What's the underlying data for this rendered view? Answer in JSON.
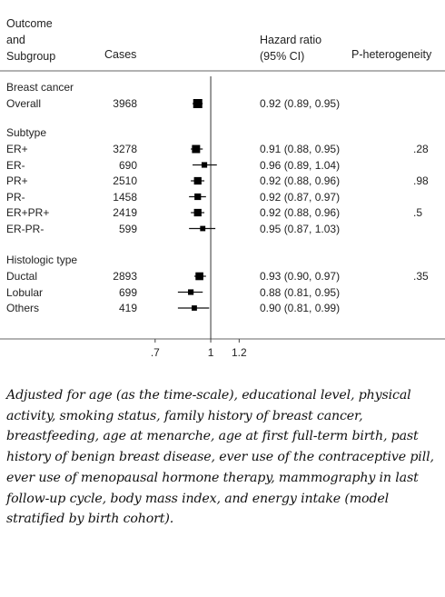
{
  "headers": {
    "outcome": "Outcome\nand\nSubgroup",
    "cases": "Cases",
    "hr": "Hazard ratio\n(95% CI)",
    "phet": "P-heterogeneity"
  },
  "note": "Adjusted for age (as the time-scale), educational level, physical activity, smoking status, family history of breast cancer, breastfeeding, age at menarche, age at first full-term birth, past history of benign breast disease, ever use of the contraceptive pill, ever use of menopausal hormone therapy, mammography in last follow-up cycle, body mass index, and energy intake (model stratified by birth cohort).",
  "chart_data": {
    "type": "forest",
    "xscale": "log",
    "xlim": [
      0.62,
      1.33
    ],
    "reference_line": 1,
    "xticks": [
      {
        "value": 0.7,
        "label": ".7"
      },
      {
        "value": 1,
        "label": "1"
      },
      {
        "value": 1.2,
        "label": "1.2"
      }
    ],
    "groups": [
      {
        "title": "Breast cancer",
        "rows": [
          {
            "label": "Overall",
            "cases": "3968",
            "hr": 0.92,
            "lo": 0.89,
            "hi": 0.95,
            "ci_text": "0.92 (0.89, 0.95)",
            "phet": "",
            "weight": 1.0
          }
        ]
      },
      {
        "title": "Subtype",
        "rows": [
          {
            "label": "ER+",
            "cases": "3278",
            "hr": 0.91,
            "lo": 0.88,
            "hi": 0.95,
            "ci_text": "0.91 (0.88, 0.95)",
            "phet": ".28",
            "weight": 0.85
          },
          {
            "label": "ER-",
            "cases": "690",
            "hr": 0.96,
            "lo": 0.89,
            "hi": 1.04,
            "ci_text": "0.96 (0.89, 1.04)",
            "phet": "",
            "weight": 0.45
          },
          {
            "label": "PR+",
            "cases": "2510",
            "hr": 0.92,
            "lo": 0.88,
            "hi": 0.96,
            "ci_text": "0.92 (0.88, 0.96)",
            "phet": ".98",
            "weight": 0.75
          },
          {
            "label": "PR-",
            "cases": "1458",
            "hr": 0.92,
            "lo": 0.87,
            "hi": 0.97,
            "ci_text": "0.92 (0.87, 0.97)",
            "phet": "",
            "weight": 0.6
          },
          {
            "label": "ER+PR+",
            "cases": "2419",
            "hr": 0.92,
            "lo": 0.88,
            "hi": 0.96,
            "ci_text": "0.92 (0.88, 0.96)",
            "phet": ".5",
            "weight": 0.75
          },
          {
            "label": "ER-PR-",
            "cases": "599",
            "hr": 0.95,
            "lo": 0.87,
            "hi": 1.03,
            "ci_text": "0.95 (0.87, 1.03)",
            "phet": "",
            "weight": 0.4
          }
        ]
      },
      {
        "title": "Histologic type",
        "rows": [
          {
            "label": "Ductal",
            "cases": "2893",
            "hr": 0.93,
            "lo": 0.9,
            "hi": 0.97,
            "ci_text": "0.93 (0.90, 0.97)",
            "phet": ".35",
            "weight": 0.8
          },
          {
            "label": "Lobular",
            "cases": "699",
            "hr": 0.88,
            "lo": 0.81,
            "hi": 0.95,
            "ci_text": "0.88 (0.81, 0.95)",
            "phet": "",
            "weight": 0.45
          },
          {
            "label": "Others",
            "cases": "419",
            "hr": 0.9,
            "lo": 0.81,
            "hi": 0.99,
            "ci_text": "0.90 (0.81, 0.99)",
            "phet": "",
            "weight": 0.4
          }
        ]
      }
    ]
  }
}
